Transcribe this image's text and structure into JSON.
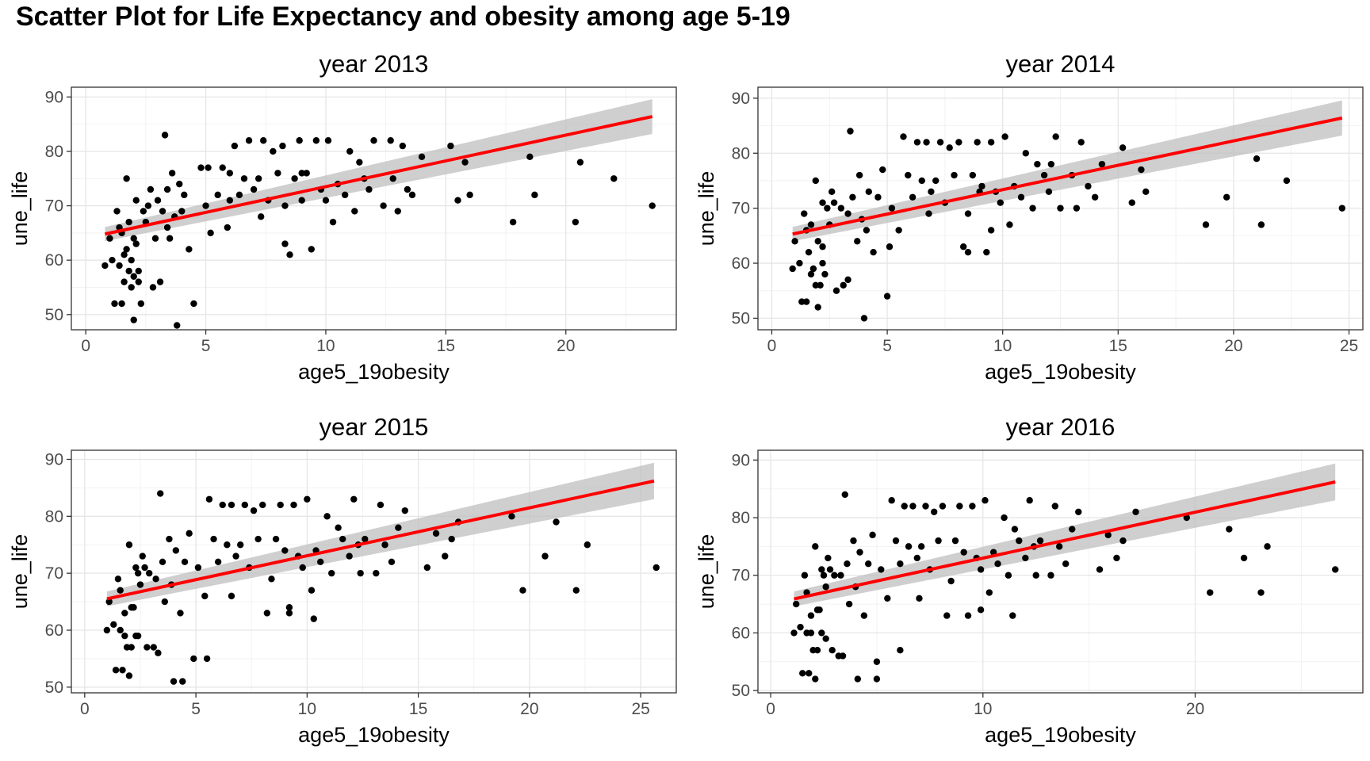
{
  "title": "Scatter Plot for Life Expectancy and obesity among age 5-19",
  "chart_data": [
    {
      "type": "scatter",
      "title": "year 2013",
      "xlabel": "age5_19obesity",
      "ylabel": "une_life",
      "xlim": [
        -0.6,
        24.6
      ],
      "ylim": [
        47.2,
        91.8
      ],
      "xticks": [
        0,
        5,
        10,
        15,
        20
      ],
      "yticks": [
        50,
        60,
        70,
        80,
        90
      ],
      "grid": true,
      "colors": {
        "points": "#000000",
        "fit": "#ff0000",
        "band": "#bfbfbf"
      },
      "fit": {
        "x": [
          0.8,
          23.6
        ],
        "y": [
          64.8,
          86.4
        ],
        "se_low": [
          63.5,
          83.2
        ],
        "se_high": [
          66.1,
          89.6
        ]
      },
      "points": {
        "x": [
          0.8,
          1.0,
          1.1,
          1.2,
          1.3,
          1.4,
          1.4,
          1.5,
          1.5,
          1.6,
          1.6,
          1.7,
          1.7,
          1.8,
          1.8,
          1.9,
          1.9,
          2.0,
          2.0,
          2.1,
          2.1,
          2.2,
          2.2,
          2.3,
          2.4,
          2.5,
          2.6,
          2.7,
          2.8,
          3.0,
          3.1,
          3.2,
          3.3,
          3.4,
          3.5,
          3.6,
          3.7,
          3.8,
          3.9,
          4.0,
          4.1,
          4.3,
          4.5,
          4.8,
          5.0,
          5.2,
          5.5,
          5.7,
          5.9,
          6.0,
          6.2,
          6.4,
          6.6,
          6.8,
          7.0,
          7.2,
          7.4,
          7.6,
          7.8,
          8.0,
          8.2,
          8.3,
          8.5,
          8.7,
          8.9,
          9.0,
          9.2,
          9.4,
          9.6,
          9.8,
          10.0,
          10.1,
          10.3,
          10.5,
          10.8,
          11.0,
          11.2,
          11.4,
          11.6,
          11.8,
          12.0,
          12.4,
          12.8,
          13.0,
          13.2,
          13.4,
          13.6,
          14.0,
          15.2,
          15.5,
          15.8,
          16.0,
          17.8,
          18.5,
          18.7,
          20.4,
          20.6,
          22.0,
          23.6,
          3.4,
          8.3,
          9.0,
          5.1,
          6.0,
          2.0,
          7.3,
          12.7,
          2.9
        ],
        "y": [
          59,
          64,
          60,
          52,
          69,
          66,
          59,
          52,
          65,
          61,
          56,
          75,
          62,
          58,
          67,
          55,
          60,
          49,
          64,
          63,
          71,
          56,
          58,
          52,
          69,
          67,
          70,
          73,
          55,
          71,
          56,
          69,
          83,
          73,
          64,
          76,
          68,
          48,
          74,
          69,
          72,
          62,
          52,
          77,
          70,
          65,
          72,
          77,
          66,
          76,
          81,
          72,
          75,
          82,
          73,
          75,
          82,
          71,
          80,
          76,
          81,
          63,
          61,
          75,
          82,
          71,
          76,
          62,
          82,
          73,
          71,
          82,
          67,
          74,
          72,
          80,
          69,
          78,
          75,
          73,
          82,
          70,
          75,
          69,
          81,
          73,
          72,
          79,
          81,
          71,
          78,
          72,
          67,
          79,
          72,
          67,
          78,
          75,
          70,
          66,
          70,
          76,
          77,
          71,
          57,
          68,
          82,
          64
        ]
      }
    },
    {
      "type": "scatter",
      "title": "year 2014",
      "xlabel": "age5_19obesity",
      "ylabel": "une_life",
      "xlim": [
        -0.6,
        25.6
      ],
      "ylim": [
        47.9,
        92.0
      ],
      "xticks": [
        0,
        5,
        10,
        15,
        20,
        25
      ],
      "yticks": [
        50,
        60,
        70,
        80,
        90
      ],
      "grid": true,
      "colors": {
        "points": "#000000",
        "fit": "#ff0000",
        "band": "#bfbfbf"
      },
      "fit": {
        "x": [
          0.9,
          24.7
        ],
        "y": [
          65.3,
          86.4
        ],
        "se_low": [
          64.0,
          83.2
        ],
        "se_high": [
          66.6,
          89.6
        ]
      },
      "points": {
        "x": [
          0.9,
          1.0,
          1.2,
          1.3,
          1.4,
          1.5,
          1.5,
          1.6,
          1.7,
          1.7,
          1.8,
          1.9,
          1.9,
          2.0,
          2.0,
          2.1,
          2.2,
          2.2,
          2.3,
          2.4,
          2.5,
          2.6,
          2.7,
          2.8,
          3.0,
          3.1,
          3.3,
          3.4,
          3.5,
          3.7,
          3.8,
          3.9,
          4.0,
          4.2,
          4.4,
          4.6,
          4.8,
          5.0,
          5.2,
          5.5,
          5.7,
          5.9,
          6.1,
          6.3,
          6.5,
          6.7,
          6.9,
          7.1,
          7.3,
          7.5,
          7.7,
          7.9,
          8.1,
          8.3,
          8.5,
          8.7,
          8.9,
          9.1,
          9.3,
          9.5,
          9.7,
          9.9,
          10.1,
          10.3,
          10.5,
          10.8,
          11.0,
          11.3,
          11.5,
          11.8,
          12.0,
          12.3,
          12.5,
          13.0,
          13.2,
          13.4,
          13.7,
          14.0,
          14.3,
          15.2,
          15.6,
          16.0,
          16.2,
          18.8,
          19.7,
          21.0,
          21.2,
          22.3,
          24.7,
          4.1,
          5.1,
          8.5,
          9.0,
          9.5,
          2.2,
          6.8,
          12.1,
          3.3
        ],
        "y": [
          59,
          64,
          60,
          53,
          69,
          66,
          53,
          62,
          58,
          67,
          59,
          56,
          75,
          52,
          64,
          56,
          63,
          71,
          58,
          70,
          67,
          73,
          71,
          55,
          70,
          56,
          69,
          84,
          72,
          64,
          76,
          68,
          50,
          73,
          62,
          72,
          77,
          54,
          70,
          66,
          83,
          76,
          72,
          82,
          75,
          82,
          73,
          75,
          82,
          71,
          81,
          76,
          82,
          63,
          69,
          76,
          82,
          74,
          62,
          82,
          73,
          71,
          83,
          67,
          74,
          72,
          80,
          70,
          78,
          76,
          73,
          83,
          70,
          76,
          70,
          82,
          74,
          72,
          78,
          81,
          71,
          77,
          73,
          67,
          72,
          79,
          67,
          75,
          70,
          66,
          63,
          62,
          73,
          66,
          60,
          69,
          78,
          57
        ]
      }
    },
    {
      "type": "scatter",
      "title": "year 2015",
      "xlabel": "age5_19obesity",
      "ylabel": "une_life",
      "xlim": [
        -0.6,
        26.6
      ],
      "ylim": [
        49.0,
        91.6
      ],
      "xticks": [
        0,
        5,
        10,
        15,
        20,
        25
      ],
      "yticks": [
        50,
        60,
        70,
        80,
        90
      ],
      "grid": true,
      "colors": {
        "points": "#000000",
        "fit": "#ff0000",
        "band": "#bfbfbf"
      },
      "fit": {
        "x": [
          1.0,
          25.6
        ],
        "y": [
          65.5,
          86.2
        ],
        "se_low": [
          64.2,
          83.0
        ],
        "se_high": [
          66.8,
          89.4
        ]
      },
      "points": {
        "x": [
          1.0,
          1.1,
          1.3,
          1.4,
          1.5,
          1.6,
          1.6,
          1.7,
          1.8,
          1.8,
          1.9,
          2.0,
          2.0,
          2.1,
          2.1,
          2.2,
          2.3,
          2.3,
          2.4,
          2.5,
          2.6,
          2.7,
          2.8,
          2.9,
          3.1,
          3.2,
          3.4,
          3.5,
          3.6,
          3.8,
          3.9,
          4.0,
          4.1,
          4.3,
          4.5,
          4.7,
          4.9,
          5.1,
          5.4,
          5.6,
          5.8,
          6.0,
          6.2,
          6.4,
          6.6,
          6.8,
          7.0,
          7.2,
          7.4,
          7.6,
          7.8,
          8.0,
          8.2,
          8.4,
          8.6,
          8.8,
          9.0,
          9.2,
          9.4,
          9.6,
          9.8,
          10.0,
          10.2,
          10.4,
          10.6,
          10.9,
          11.1,
          11.4,
          11.6,
          11.9,
          12.1,
          12.4,
          12.6,
          13.1,
          13.3,
          13.5,
          13.8,
          14.1,
          14.4,
          15.4,
          15.8,
          16.2,
          16.5,
          16.8,
          19.2,
          19.7,
          20.7,
          21.2,
          22.1,
          22.6,
          25.7,
          4.4,
          5.5,
          9.2,
          10.3,
          2.4,
          6.6,
          12.3,
          3.3
        ],
        "y": [
          60,
          65,
          61,
          53,
          69,
          67,
          60,
          53,
          63,
          59,
          57,
          75,
          52,
          64,
          57,
          64,
          71,
          59,
          70,
          68,
          73,
          71,
          57,
          70,
          57,
          69,
          84,
          72,
          65,
          76,
          68,
          51,
          74,
          63,
          72,
          77,
          55,
          71,
          66,
          83,
          76,
          72,
          82,
          75,
          82,
          73,
          75,
          82,
          71,
          81,
          76,
          82,
          63,
          69,
          76,
          82,
          74,
          63,
          82,
          73,
          71,
          83,
          67,
          74,
          72,
          80,
          70,
          78,
          76,
          73,
          83,
          70,
          76,
          70,
          82,
          75,
          72,
          78,
          81,
          71,
          77,
          73,
          76,
          79,
          80,
          67,
          73,
          79,
          67,
          75,
          71,
          51,
          55,
          64,
          62,
          59,
          66,
          75,
          56
        ]
      }
    },
    {
      "type": "scatter",
      "title": "year 2016",
      "xlabel": "age5_19obesity",
      "ylabel": "une_life",
      "xlim": [
        -0.6,
        27.9
      ],
      "ylim": [
        49.6,
        91.7
      ],
      "xticks": [
        0,
        10,
        20
      ],
      "yticks": [
        50,
        60,
        70,
        80,
        90
      ],
      "grid": true,
      "colors": {
        "points": "#000000",
        "fit": "#ff0000",
        "band": "#bfbfbf"
      },
      "fit": {
        "x": [
          1.1,
          26.6
        ],
        "y": [
          65.9,
          86.2
        ],
        "se_low": [
          64.6,
          83.0
        ],
        "se_high": [
          67.2,
          89.4
        ]
      },
      "points": {
        "x": [
          1.1,
          1.2,
          1.4,
          1.5,
          1.6,
          1.7,
          1.7,
          1.8,
          1.9,
          1.9,
          2.0,
          2.1,
          2.1,
          2.2,
          2.2,
          2.3,
          2.4,
          2.4,
          2.5,
          2.6,
          2.7,
          2.8,
          2.9,
          3.0,
          3.2,
          3.3,
          3.5,
          3.6,
          3.7,
          3.9,
          4.0,
          4.1,
          4.2,
          4.4,
          4.6,
          4.8,
          5.0,
          5.2,
          5.5,
          5.7,
          5.9,
          6.1,
          6.3,
          6.5,
          6.7,
          6.9,
          7.1,
          7.3,
          7.5,
          7.7,
          7.9,
          8.1,
          8.3,
          8.5,
          8.7,
          8.9,
          9.1,
          9.3,
          9.5,
          9.7,
          9.9,
          10.1,
          10.3,
          10.5,
          10.7,
          11.0,
          11.2,
          11.5,
          11.7,
          12.0,
          12.2,
          12.5,
          12.7,
          13.2,
          13.4,
          13.6,
          13.9,
          14.2,
          14.5,
          15.5,
          15.9,
          16.3,
          16.6,
          17.2,
          19.6,
          20.7,
          21.6,
          22.3,
          23.1,
          23.4,
          26.6,
          5.0,
          6.1,
          9.9,
          11.4,
          2.6,
          7.0,
          12.4,
          3.4
        ],
        "y": [
          60,
          65,
          61,
          53,
          70,
          67,
          60,
          53,
          63,
          60,
          57,
          75,
          52,
          64,
          57,
          64,
          71,
          60,
          70,
          68,
          73,
          71,
          57,
          70,
          56,
          70,
          84,
          72,
          65,
          76,
          68,
          52,
          74,
          63,
          72,
          77,
          55,
          71,
          66,
          83,
          76,
          72,
          82,
          75,
          82,
          73,
          75,
          82,
          71,
          81,
          76,
          82,
          63,
          69,
          76,
          82,
          74,
          63,
          82,
          73,
          71,
          83,
          67,
          74,
          72,
          80,
          70,
          78,
          76,
          73,
          83,
          70,
          76,
          70,
          82,
          75,
          72,
          78,
          81,
          71,
          77,
          73,
          76,
          81,
          80,
          67,
          78,
          73,
          67,
          75,
          71,
          52,
          57,
          64,
          63,
          59,
          66,
          75,
          56
        ]
      }
    }
  ]
}
